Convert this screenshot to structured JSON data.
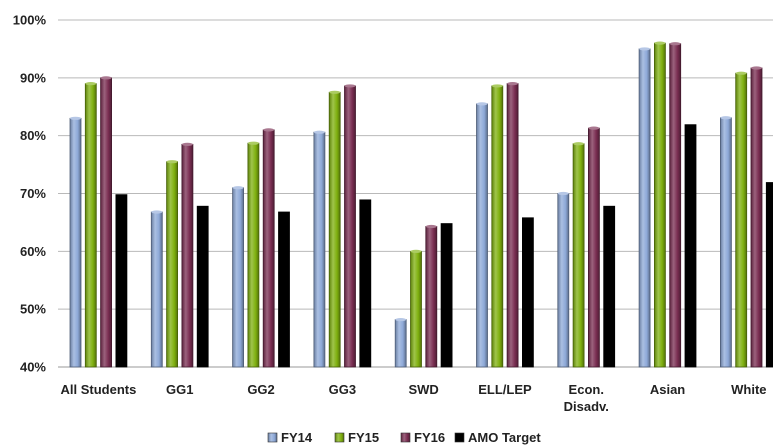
{
  "chart_data": {
    "type": "bar",
    "categories": [
      "All Students",
      "GG1",
      "GG2",
      "GG3",
      "SWD",
      "ELL/LEP",
      "Econ. Disadv.",
      "Asian",
      "White"
    ],
    "category_lines": [
      [
        "All Students"
      ],
      [
        "GG1"
      ],
      [
        "GG2"
      ],
      [
        "GG3"
      ],
      [
        "SWD"
      ],
      [
        "ELL/LEP"
      ],
      [
        "Econ.",
        "Disadv."
      ],
      [
        "Asian"
      ],
      [
        "White"
      ]
    ],
    "series": [
      {
        "name": "FY14",
        "color": "#8ea9d8",
        "values": [
          83,
          66.8,
          71,
          80.6,
          48.2,
          85.5,
          70,
          95,
          83.1
        ]
      },
      {
        "name": "FY15",
        "color": "#7fb00f",
        "values": [
          89,
          75.5,
          78.7,
          87.5,
          60,
          88.6,
          78.6,
          96,
          90.8
        ]
      },
      {
        "name": "FY16",
        "color": "#7a2e52",
        "values": [
          90,
          78.5,
          81,
          88.6,
          64.3,
          89,
          81.3,
          95.9,
          91.7
        ]
      },
      {
        "name": "AMO Target",
        "color": "#000000",
        "values": [
          69.8,
          67.8,
          66.8,
          68.9,
          64.8,
          65.8,
          67.8,
          81.9,
          71.9
        ]
      }
    ],
    "yticks": [
      "40%",
      "50%",
      "60%",
      "70%",
      "80%",
      "90%",
      "100%"
    ],
    "ylim": [
      40,
      100
    ],
    "grid": true,
    "legend_position": "bottom",
    "title": "",
    "xlabel": "",
    "ylabel": ""
  }
}
